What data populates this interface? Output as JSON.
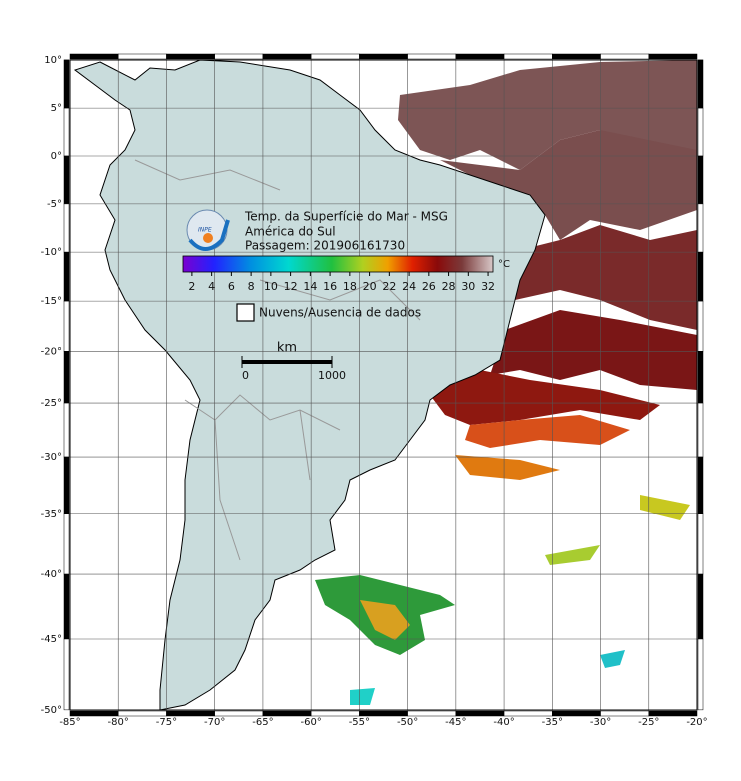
{
  "map": {
    "xticks": [
      {
        "value": -85,
        "label": "-85°"
      },
      {
        "value": -80,
        "label": "-80°"
      },
      {
        "value": -75,
        "label": "-75°"
      },
      {
        "value": -70,
        "label": "-70°"
      },
      {
        "value": -65,
        "label": "-65°"
      },
      {
        "value": -60,
        "label": "-60°"
      },
      {
        "value": -55,
        "label": "-55°"
      },
      {
        "value": -50,
        "label": "-50°"
      },
      {
        "value": -45,
        "label": "-45°"
      },
      {
        "value": -40,
        "label": "-40°"
      },
      {
        "value": -35,
        "label": "-35°"
      },
      {
        "value": -30,
        "label": "-30°"
      },
      {
        "value": -25,
        "label": "-25°"
      },
      {
        "value": -20,
        "label": "-20°"
      }
    ],
    "yticks": [
      {
        "value": 10,
        "label": "10°"
      },
      {
        "value": 5,
        "label": "5°"
      },
      {
        "value": 0,
        "label": "0°"
      },
      {
        "value": -5,
        "label": "-5°"
      },
      {
        "value": -10,
        "label": "-10°"
      },
      {
        "value": -15,
        "label": "-15°"
      },
      {
        "value": -20,
        "label": "-20°"
      },
      {
        "value": -25,
        "label": "-25°"
      },
      {
        "value": -30,
        "label": "-30°"
      },
      {
        "value": -35,
        "label": "-35°"
      },
      {
        "value": -40,
        "label": "-40°"
      },
      {
        "value": -45,
        "label": "-45°"
      },
      {
        "value": -50,
        "label": "-50°"
      }
    ]
  },
  "legend": {
    "logo": "INPE",
    "title": "Temp. da Superfície do Mar - MSG",
    "subtitle": "América do Sul",
    "pass": "Passagem: 201906161730",
    "colorbar": {
      "ticks": [
        2,
        4,
        6,
        8,
        10,
        12,
        14,
        16,
        18,
        20,
        22,
        24,
        26,
        28,
        30,
        32
      ],
      "lim": [
        1.1,
        32.5
      ],
      "unit": "°C"
    },
    "no_data": "Nuvens/Ausencia de dados",
    "scale": {
      "unit": "km",
      "ticks": [
        0,
        1000
      ]
    }
  }
}
